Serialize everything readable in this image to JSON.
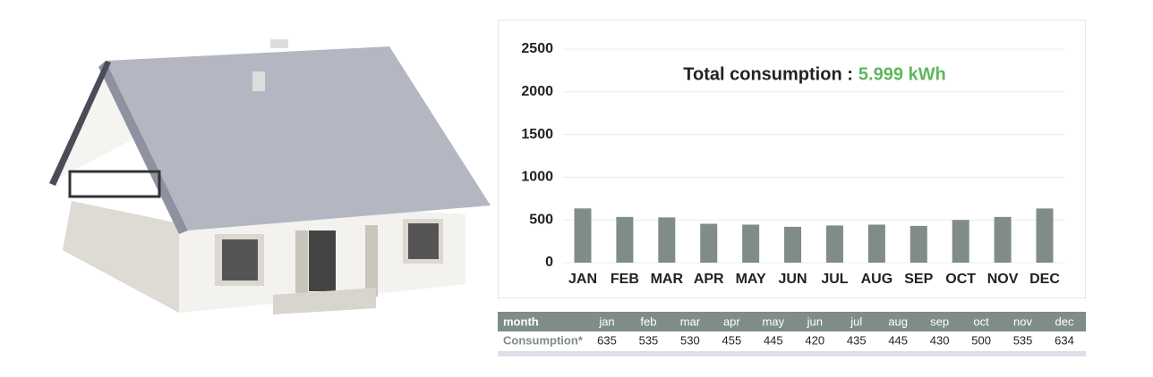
{
  "chart_data": {
    "type": "bar",
    "title": "Total consumption :",
    "title_value": "5.999 kWh",
    "categories": [
      "JAN",
      "FEB",
      "MAR",
      "APR",
      "MAY",
      "JUN",
      "JUL",
      "AUG",
      "SEP",
      "OCT",
      "NOV",
      "DEC"
    ],
    "values": [
      635,
      535,
      530,
      455,
      445,
      420,
      435,
      445,
      430,
      500,
      535,
      634
    ],
    "color": "#7f8c8a",
    "ylim": [
      0,
      2500
    ],
    "yticks": [
      0,
      500,
      1000,
      1500,
      2000,
      2500
    ],
    "grid": true
  },
  "table": {
    "header": [
      "month",
      "jan",
      "feb",
      "mar",
      "apr",
      "may",
      "jun",
      "jul",
      "aug",
      "sep",
      "oct",
      "nov",
      "dec"
    ],
    "row_label": "Consumption*"
  }
}
